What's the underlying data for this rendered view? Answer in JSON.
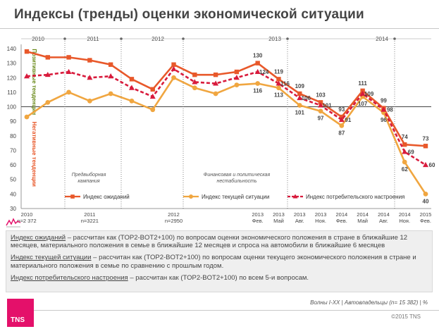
{
  "title": "Индексы (тренды) оценки экономической ситуации",
  "chart_data": {
    "type": "line",
    "ylim": [
      30,
      140
    ],
    "yticks": [
      30,
      40,
      50,
      60,
      70,
      80,
      90,
      100,
      110,
      120,
      130,
      140
    ],
    "grid": false,
    "legend_position": "bottom",
    "categories": [
      {
        "top": "2010",
        "bottom": "n=2 372"
      },
      {
        "top": "",
        "bottom": ""
      },
      {
        "top": "",
        "bottom": ""
      },
      {
        "top": "2011",
        "bottom": "n=3221"
      },
      {
        "top": "",
        "bottom": ""
      },
      {
        "top": "",
        "bottom": ""
      },
      {
        "top": "",
        "bottom": ""
      },
      {
        "top": "2012",
        "bottom": "n=2950"
      },
      {
        "top": "",
        "bottom": ""
      },
      {
        "top": "",
        "bottom": ""
      },
      {
        "top": "",
        "bottom": ""
      },
      {
        "top": "2013",
        "bottom": "Фев."
      },
      {
        "top": "2013",
        "bottom": "Май"
      },
      {
        "top": "2013",
        "bottom": "Авг."
      },
      {
        "top": "2013",
        "bottom": "Ноя."
      },
      {
        "top": "2014",
        "bottom": "Фев."
      },
      {
        "top": "2014",
        "bottom": "Май"
      },
      {
        "top": "2014",
        "bottom": "Авг."
      },
      {
        "top": "2014",
        "bottom": "Ноя."
      },
      {
        "top": "2015",
        "bottom": "Фев."
      }
    ],
    "series": [
      {
        "name": "Индекс ожиданий",
        "color": "#e8582a",
        "marker": "square",
        "style": "solid",
        "values": [
          138,
          134,
          134,
          132,
          129,
          119,
          112,
          129,
          122,
          122,
          124,
          130,
          119,
          109,
          103,
          93,
          111,
          99,
          74,
          73
        ],
        "labels": {
          "11": "130",
          "12": "119",
          "13": "109",
          "14": "103",
          "15": "93",
          "16": "111",
          "17": "99",
          "18": "74",
          "19": "73"
        }
      },
      {
        "name": "Индекс текущей ситуации",
        "color": "#f0a640",
        "marker": "circle",
        "style": "solid",
        "values": [
          93,
          103,
          110,
          104,
          109,
          104,
          98,
          120,
          113,
          109,
          115,
          116,
          113,
          101,
          97,
          87,
          107,
          96,
          62,
          40
        ],
        "labels": {
          "11": "116",
          "12": "113",
          "13": "101",
          "14": "97",
          "15": "87",
          "16": "107",
          "17": "96",
          "18": "62",
          "19": "40"
        }
      },
      {
        "name": "Индекс потребительского настроения",
        "color": "#d81b3c",
        "marker": "triangle",
        "style": "dashed",
        "values": [
          121,
          122,
          124,
          120,
          121,
          113,
          107,
          126,
          117,
          116,
          120,
          124,
          116,
          106,
          101,
          91,
          109,
          98,
          69,
          60
        ],
        "labels": {
          "11": "124",
          "12": "116",
          "13": "106",
          "14": "101",
          "15": "91",
          "16": "109",
          "17": "98",
          "18": "69",
          "19": "60"
        }
      }
    ],
    "reference_line": 100,
    "side_labels": {
      "positive": "Позитивные тенденции",
      "negative": "Негативные тенденции"
    },
    "period_labels": [
      "2010",
      "2011",
      "2012",
      "2013",
      "2014"
    ],
    "annotations": [
      "Предвыборная кампания",
      "Финансовая и политическая нестабильность"
    ]
  },
  "description": {
    "items": [
      {
        "term": "Индекс ожиданий",
        "text": " – рассчитан как (TOP2-BOT2+100) по вопросам оценки экономического положения в стране  в ближайшие 12 месяцев, материального положения в семье в ближайшие  12 месяцев и спроса на автомобили в ближайшие 6 месяцев"
      },
      {
        "term": "Индекс текущей ситуации",
        "text": " – рассчитан как (TOP2-BOT2+100) по вопросам оценки  текущего экономического положения в стране и материального положения в семье по сравнению с прошлым годом."
      },
      {
        "term": "Индекс потребительского настроения",
        "text": " – рассчитан как (TOP2-BOT2+100) по всем 5-и вопросам."
      }
    ]
  },
  "footnote": "Волны I-XX | Автовладельцы (n= 15 382) | %",
  "copyright": "©2015 TNS",
  "logo_text": "TNS",
  "colors": {
    "accent": "#e4106a",
    "positive": "#6a8a1a",
    "negative": "#e8582a"
  }
}
